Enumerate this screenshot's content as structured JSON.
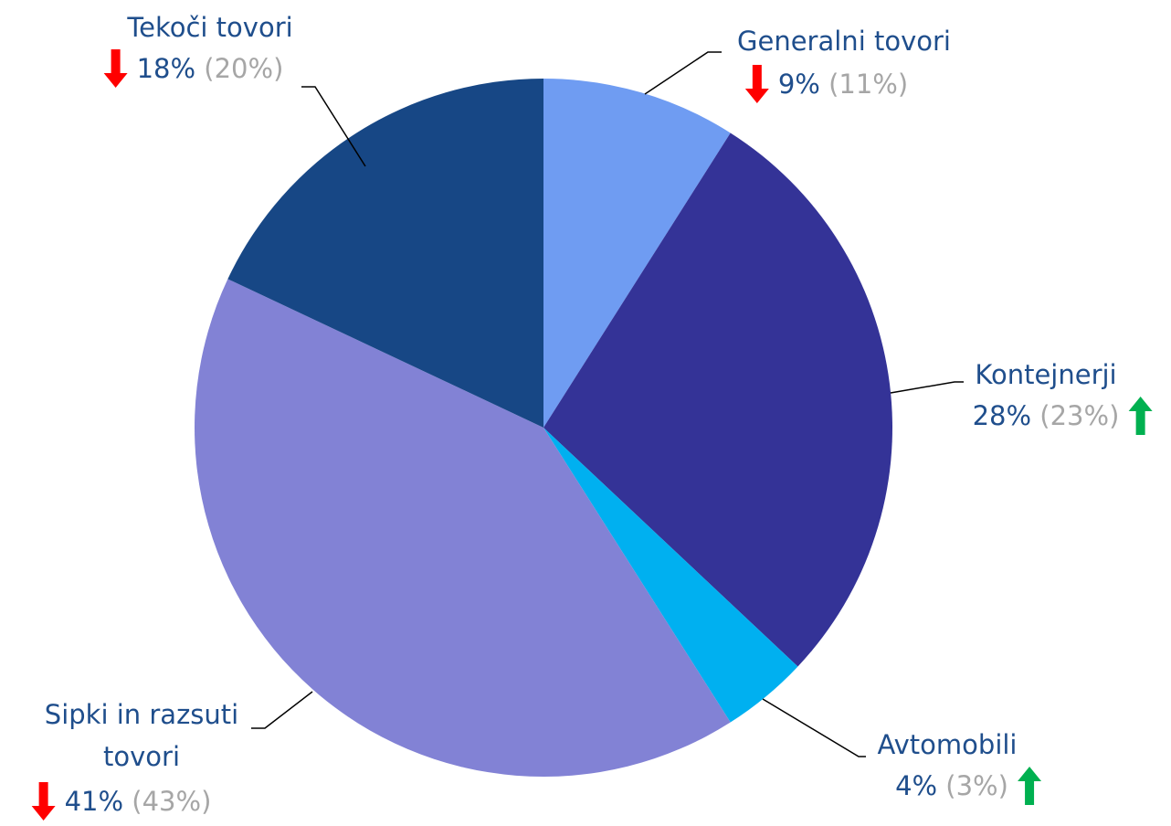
{
  "chart_data": {
    "type": "pie",
    "categories": [
      "Generalni tovori",
      "Kontejnerji",
      "Avtomobili",
      "Sipki in razsuti tovori",
      "Tekoči tovori"
    ],
    "values": [
      9,
      28,
      4,
      41,
      18
    ],
    "value_labels": [
      "9%",
      "28%",
      "4%",
      "41%",
      "18%"
    ],
    "previous_values": [
      11,
      23,
      3,
      43,
      20
    ],
    "previous_value_labels": [
      "(11%)",
      "(23%)",
      "(3%)",
      "(43%)",
      "(20%)"
    ],
    "trends": [
      "down",
      "up",
      "up",
      "down",
      "down"
    ],
    "trend_colors": {
      "up": "#00b050",
      "down": "#ff0000"
    },
    "colors": [
      "#6f9cf2",
      "#343397",
      "#00b0f0",
      "#8282d5",
      "#174785"
    ]
  }
}
